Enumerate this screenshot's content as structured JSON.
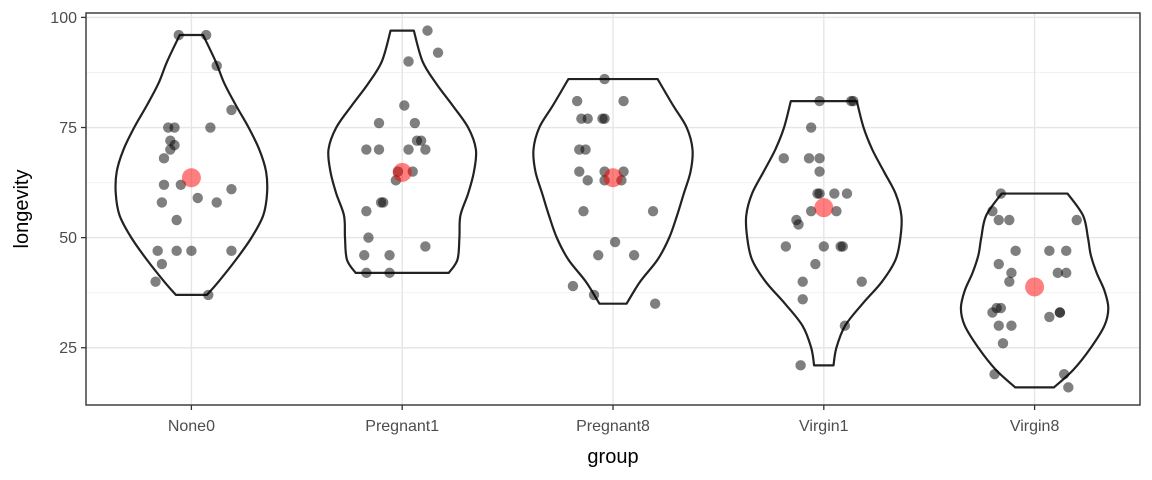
{
  "chart_data": {
    "type": "scatter",
    "subtype": "violin-with-jittered-points",
    "xlabel": "group",
    "ylabel": "longevity",
    "categories": [
      "None0",
      "Pregnant1",
      "Pregnant8",
      "Virgin1",
      "Virgin8"
    ],
    "yticks": [
      25,
      50,
      75,
      100
    ],
    "ylim": [
      12,
      101
    ],
    "grid": true,
    "colors": {
      "points": "#000000",
      "mean": "#ff0000",
      "violin_outline": "#222222",
      "grid_major": "#e6e6e6",
      "grid_minor": "#f2f2f2",
      "panel_border": "#333333"
    },
    "groups": [
      {
        "name": "None0",
        "mean": 63.6,
        "points": [
          {
            "x": -0.17,
            "y": 40
          },
          {
            "x": -0.16,
            "y": 47
          },
          {
            "x": -0.14,
            "y": 44
          },
          {
            "x": -0.14,
            "y": 58
          },
          {
            "x": -0.13,
            "y": 62
          },
          {
            "x": -0.13,
            "y": 68
          },
          {
            "x": -0.11,
            "y": 75
          },
          {
            "x": -0.1,
            "y": 72
          },
          {
            "x": -0.1,
            "y": 70
          },
          {
            "x": -0.08,
            "y": 75
          },
          {
            "x": -0.08,
            "y": 71
          },
          {
            "x": -0.07,
            "y": 54
          },
          {
            "x": -0.07,
            "y": 47
          },
          {
            "x": -0.05,
            "y": 62
          },
          {
            "x": -0.06,
            "y": 96
          },
          {
            "x": 0.0,
            "y": 47
          },
          {
            "x": 0.03,
            "y": 59
          },
          {
            "x": 0.07,
            "y": 96
          },
          {
            "x": 0.08,
            "y": 37
          },
          {
            "x": 0.09,
            "y": 75
          },
          {
            "x": 0.12,
            "y": 58
          },
          {
            "x": 0.12,
            "y": 89
          },
          {
            "x": 0.19,
            "y": 47
          },
          {
            "x": 0.19,
            "y": 61
          },
          {
            "x": 0.19,
            "y": 79
          }
        ],
        "violin": {
          "min": 37,
          "max": 96,
          "profile": [
            [
              37,
              0.16
            ],
            [
              40,
              0.28
            ],
            [
              45,
              0.46
            ],
            [
              50,
              0.62
            ],
            [
              55,
              0.74
            ],
            [
              60,
              0.78
            ],
            [
              65,
              0.77
            ],
            [
              70,
              0.7
            ],
            [
              75,
              0.59
            ],
            [
              80,
              0.46
            ],
            [
              85,
              0.34
            ],
            [
              90,
              0.25
            ],
            [
              96,
              0.12
            ]
          ]
        }
      },
      {
        "name": "Pregnant1",
        "mean": 64.8,
        "points": [
          {
            "x": -0.18,
            "y": 46
          },
          {
            "x": -0.17,
            "y": 42
          },
          {
            "x": -0.17,
            "y": 56
          },
          {
            "x": -0.16,
            "y": 50
          },
          {
            "x": -0.17,
            "y": 70
          },
          {
            "x": -0.11,
            "y": 70
          },
          {
            "x": -0.11,
            "y": 76
          },
          {
            "x": -0.1,
            "y": 58
          },
          {
            "x": -0.09,
            "y": 58
          },
          {
            "x": -0.06,
            "y": 42
          },
          {
            "x": -0.06,
            "y": 46
          },
          {
            "x": -0.03,
            "y": 63
          },
          {
            "x": -0.02,
            "y": 65
          },
          {
            "x": 0.01,
            "y": 80
          },
          {
            "x": 0.03,
            "y": 70
          },
          {
            "x": 0.03,
            "y": 90
          },
          {
            "x": 0.05,
            "y": 65
          },
          {
            "x": 0.06,
            "y": 76
          },
          {
            "x": 0.07,
            "y": 72
          },
          {
            "x": 0.09,
            "y": 72
          },
          {
            "x": 0.11,
            "y": 70
          },
          {
            "x": 0.11,
            "y": 48
          },
          {
            "x": 0.12,
            "y": 97
          },
          {
            "x": 0.17,
            "y": 92
          }
        ],
        "violin": {
          "min": 42,
          "max": 97,
          "profile": [
            [
              42,
              0.48
            ],
            [
              45,
              0.57
            ],
            [
              50,
              0.59
            ],
            [
              55,
              0.6
            ],
            [
              60,
              0.68
            ],
            [
              65,
              0.74
            ],
            [
              70,
              0.76
            ],
            [
              75,
              0.68
            ],
            [
              80,
              0.52
            ],
            [
              85,
              0.35
            ],
            [
              90,
              0.21
            ],
            [
              97,
              0.12
            ]
          ]
        }
      },
      {
        "name": "Pregnant8",
        "mean": 63.6,
        "points": [
          {
            "x": -0.19,
            "y": 39
          },
          {
            "x": -0.17,
            "y": 81
          },
          {
            "x": -0.16,
            "y": 65
          },
          {
            "x": -0.16,
            "y": 70
          },
          {
            "x": -0.15,
            "y": 77
          },
          {
            "x": -0.14,
            "y": 56
          },
          {
            "x": -0.13,
            "y": 70
          },
          {
            "x": -0.12,
            "y": 63
          },
          {
            "x": -0.12,
            "y": 77
          },
          {
            "x": -0.09,
            "y": 37
          },
          {
            "x": -0.07,
            "y": 46
          },
          {
            "x": -0.05,
            "y": 77
          },
          {
            "x": -0.04,
            "y": 77
          },
          {
            "x": -0.04,
            "y": 63
          },
          {
            "x": -0.04,
            "y": 65
          },
          {
            "x": -0.04,
            "y": 86
          },
          {
            "x": 0.01,
            "y": 49
          },
          {
            "x": 0.04,
            "y": 63
          },
          {
            "x": 0.05,
            "y": 65
          },
          {
            "x": 0.05,
            "y": 81
          },
          {
            "x": 0.1,
            "y": 46
          },
          {
            "x": 0.19,
            "y": 56
          },
          {
            "x": 0.2,
            "y": 35
          }
        ],
        "violin": {
          "min": 35,
          "max": 86,
          "profile": [
            [
              35,
              0.14
            ],
            [
              40,
              0.28
            ],
            [
              45,
              0.46
            ],
            [
              50,
              0.58
            ],
            [
              55,
              0.66
            ],
            [
              60,
              0.73
            ],
            [
              65,
              0.8
            ],
            [
              70,
              0.82
            ],
            [
              75,
              0.76
            ],
            [
              80,
              0.62
            ],
            [
              86,
              0.46
            ]
          ]
        }
      },
      {
        "name": "Virgin1",
        "mean": 56.8,
        "points": [
          {
            "x": -0.19,
            "y": 68
          },
          {
            "x": -0.18,
            "y": 48
          },
          {
            "x": -0.13,
            "y": 54
          },
          {
            "x": -0.12,
            "y": 53
          },
          {
            "x": -0.11,
            "y": 21
          },
          {
            "x": -0.1,
            "y": 36
          },
          {
            "x": -0.1,
            "y": 40
          },
          {
            "x": -0.07,
            "y": 68
          },
          {
            "x": -0.06,
            "y": 75
          },
          {
            "x": -0.06,
            "y": 56
          },
          {
            "x": -0.04,
            "y": 44
          },
          {
            "x": -0.03,
            "y": 60
          },
          {
            "x": -0.02,
            "y": 60
          },
          {
            "x": -0.02,
            "y": 65
          },
          {
            "x": -0.02,
            "y": 68
          },
          {
            "x": -0.02,
            "y": 81
          },
          {
            "x": 0.0,
            "y": 48
          },
          {
            "x": 0.05,
            "y": 60
          },
          {
            "x": 0.06,
            "y": 56
          },
          {
            "x": 0.08,
            "y": 48
          },
          {
            "x": 0.09,
            "y": 48
          },
          {
            "x": 0.1,
            "y": 30
          },
          {
            "x": 0.11,
            "y": 60
          },
          {
            "x": 0.13,
            "y": 81
          },
          {
            "x": 0.14,
            "y": 81
          },
          {
            "x": 0.18,
            "y": 40
          }
        ],
        "violin": {
          "min": 21,
          "max": 81,
          "profile": [
            [
              21,
              0.1
            ],
            [
              25,
              0.13
            ],
            [
              30,
              0.22
            ],
            [
              35,
              0.4
            ],
            [
              40,
              0.6
            ],
            [
              45,
              0.74
            ],
            [
              50,
              0.79
            ],
            [
              55,
              0.8
            ],
            [
              60,
              0.74
            ],
            [
              65,
              0.62
            ],
            [
              70,
              0.5
            ],
            [
              75,
              0.41
            ],
            [
              81,
              0.34
            ]
          ]
        }
      },
      {
        "name": "Virgin8",
        "mean": 38.8,
        "points": [
          {
            "x": -0.2,
            "y": 56
          },
          {
            "x": -0.2,
            "y": 33
          },
          {
            "x": -0.19,
            "y": 19
          },
          {
            "x": -0.18,
            "y": 34
          },
          {
            "x": -0.17,
            "y": 54
          },
          {
            "x": -0.17,
            "y": 30
          },
          {
            "x": -0.16,
            "y": 60
          },
          {
            "x": -0.16,
            "y": 34
          },
          {
            "x": -0.15,
            "y": 26
          },
          {
            "x": -0.12,
            "y": 54
          },
          {
            "x": -0.12,
            "y": 40
          },
          {
            "x": -0.11,
            "y": 42
          },
          {
            "x": -0.11,
            "y": 30
          },
          {
            "x": -0.09,
            "y": 47
          },
          {
            "x": -0.17,
            "y": 44
          },
          {
            "x": 0.07,
            "y": 47
          },
          {
            "x": 0.07,
            "y": 32
          },
          {
            "x": 0.11,
            "y": 42
          },
          {
            "x": 0.12,
            "y": 33
          },
          {
            "x": 0.12,
            "y": 33
          },
          {
            "x": 0.14,
            "y": 19
          },
          {
            "x": 0.15,
            "y": 47
          },
          {
            "x": 0.15,
            "y": 42
          },
          {
            "x": 0.16,
            "y": 16
          },
          {
            "x": 0.2,
            "y": 54
          }
        ],
        "violin": {
          "min": 16,
          "max": 60,
          "profile": [
            [
              16,
              0.2
            ],
            [
              20,
              0.4
            ],
            [
              25,
              0.58
            ],
            [
              30,
              0.72
            ],
            [
              34,
              0.76
            ],
            [
              38,
              0.72
            ],
            [
              42,
              0.64
            ],
            [
              46,
              0.58
            ],
            [
              50,
              0.55
            ],
            [
              55,
              0.5
            ],
            [
              60,
              0.34
            ]
          ]
        }
      }
    ]
  }
}
